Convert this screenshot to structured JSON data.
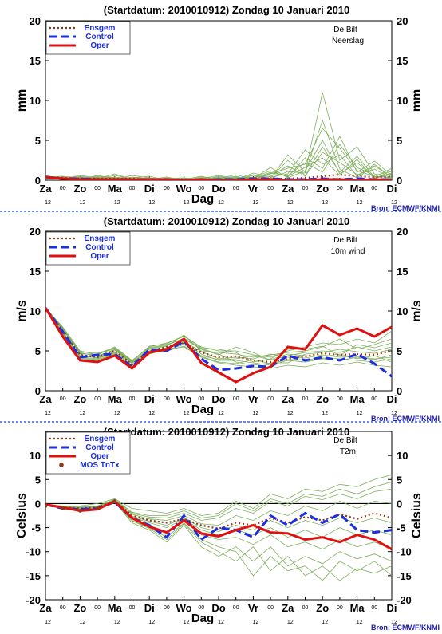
{
  "colors": {
    "ensemble": "#7fae5c",
    "ensgem": "#8b3a1a",
    "control": "#1c2fe0",
    "oper": "#e01010",
    "mos": "#8b3a1a",
    "divider": "#1a3de8",
    "credit": "#1a1ab0"
  },
  "credit": "Bron: ECMWF/KNMI",
  "station": "De Bilt",
  "x_tick_labels": [
    "Za",
    "Zo",
    "Ma",
    "Di",
    "Wo",
    "Do",
    "Vr",
    "Za",
    "Zo",
    "Ma",
    "Di"
  ],
  "x_sub_labels": [
    "12",
    "12",
    "12",
    "12",
    "12",
    "12",
    "12",
    "12",
    "12",
    "12",
    "12"
  ],
  "x_mid_label": "00",
  "chart_data": [
    {
      "type": "line",
      "title": "(Startdatum: 2010010912)   Zondag    10 Januari   2010",
      "variable": "Neerslag",
      "ylabel": "mm",
      "xlabel": "Dag",
      "ylim": [
        0,
        20
      ],
      "yticks": [
        0,
        5,
        10,
        15,
        20
      ],
      "x": [
        0,
        0.5,
        1,
        1.5,
        2,
        2.5,
        3,
        3.5,
        4,
        4.5,
        5,
        5.5,
        6,
        6.5,
        7,
        7.5,
        8,
        8.5,
        9,
        9.5,
        10
      ],
      "legend": [
        "Ensgem",
        "Control",
        "Oper"
      ],
      "series": [
        {
          "name": "Ensgem",
          "values": [
            0.4,
            0.3,
            0.2,
            0.2,
            0.2,
            0.2,
            0.1,
            0.1,
            0.1,
            0.1,
            0.1,
            0.1,
            0.1,
            0.2,
            0.2,
            0.3,
            0.5,
            0.7,
            0.5,
            0.4,
            0.4
          ]
        },
        {
          "name": "Control",
          "values": [
            0.4,
            0.2,
            0.2,
            0.1,
            0.1,
            0.1,
            0.1,
            0.0,
            0.0,
            0.0,
            0.1,
            0.1,
            0.2,
            0.2,
            0.1,
            0.1,
            0.2,
            0.1,
            0.2,
            0.1,
            0.1
          ]
        },
        {
          "name": "Oper",
          "values": [
            0.4,
            0.2,
            0.1,
            0.1,
            0.1,
            0.1,
            0.1,
            0.1,
            0.0,
            0.1,
            0.0,
            0.0,
            0.1,
            0.1,
            0.0,
            0.0,
            0.1,
            0.1,
            0.0,
            0.1,
            0.0
          ]
        }
      ],
      "members": [
        [
          0.4,
          0.3,
          0.1,
          0.6,
          0.2,
          0.1,
          0.3,
          0.1,
          0.0,
          0.2,
          0.1,
          0.4,
          0.1,
          0.8,
          1.5,
          2.0,
          6.5,
          4.0,
          1.2,
          0.5,
          0.3
        ],
        [
          0.5,
          0.1,
          0.4,
          0.1,
          0.3,
          0.0,
          0.1,
          0.2,
          0.1,
          0.0,
          0.3,
          0.0,
          0.6,
          0.2,
          3.2,
          1.0,
          11.0,
          2.5,
          4.2,
          0.8,
          0.2
        ],
        [
          0.3,
          0.4,
          0.2,
          0.3,
          0.1,
          0.4,
          0.2,
          0.0,
          0.2,
          0.1,
          0.0,
          0.2,
          0.3,
          1.2,
          0.4,
          2.8,
          1.5,
          5.5,
          1.0,
          2.4,
          0.6
        ],
        [
          0.4,
          0.2,
          0.5,
          0.2,
          0.8,
          0.1,
          0.0,
          0.3,
          0.0,
          0.4,
          0.2,
          0.7,
          0.1,
          0.3,
          2.5,
          0.6,
          4.2,
          1.0,
          3.0,
          0.4,
          1.5
        ],
        [
          0.6,
          0.1,
          0.2,
          0.4,
          0.1,
          0.6,
          0.3,
          0.1,
          0.3,
          0.0,
          0.5,
          0.1,
          0.9,
          0.4,
          0.8,
          3.8,
          2.0,
          3.2,
          0.5,
          2.0,
          0.3
        ],
        [
          0.3,
          0.3,
          0.0,
          0.2,
          0.4,
          0.2,
          0.1,
          0.4,
          0.0,
          0.3,
          0.1,
          0.3,
          0.2,
          1.6,
          0.3,
          1.2,
          5.0,
          0.8,
          2.2,
          0.3,
          0.9
        ],
        [
          0.4,
          0.5,
          0.3,
          0.1,
          0.2,
          0.3,
          0.5,
          0.0,
          0.1,
          0.2,
          0.6,
          0.2,
          0.4,
          0.5,
          1.8,
          0.5,
          3.5,
          2.2,
          0.7,
          1.4,
          0.2
        ],
        [
          0.5,
          0.2,
          0.6,
          0.3,
          0.1,
          0.0,
          0.2,
          0.2,
          0.3,
          0.1,
          0.2,
          0.5,
          0.0,
          0.9,
          0.6,
          2.2,
          1.0,
          4.5,
          1.6,
          0.6,
          1.1
        ],
        [
          0.2,
          0.4,
          0.1,
          0.5,
          0.3,
          0.1,
          0.0,
          0.1,
          0.2,
          0.0,
          0.4,
          0.1,
          0.7,
          0.2,
          1.1,
          0.9,
          7.5,
          1.4,
          0.3,
          1.8,
          0.4
        ],
        [
          0.4,
          0.1,
          0.3,
          0.2,
          0.6,
          0.2,
          0.3,
          0.0,
          0.1,
          0.5,
          0.0,
          0.3,
          0.2,
          1.0,
          0.5,
          1.6,
          2.8,
          0.6,
          2.6,
          0.2,
          0.8
        ]
      ]
    },
    {
      "type": "line",
      "title": "(Startdatum: 2010010912)   Zondag    10 Januari   2010",
      "variable": "10m wind",
      "ylabel": "m/s",
      "xlabel": "Dag",
      "ylim": [
        0,
        20
      ],
      "yticks": [
        0,
        5,
        10,
        15,
        20
      ],
      "x": [
        0,
        0.5,
        1,
        1.5,
        2,
        2.5,
        3,
        3.5,
        4,
        4.5,
        5,
        5.5,
        6,
        6.5,
        7,
        7.5,
        8,
        8.5,
        9,
        9.5,
        10
      ],
      "legend": [
        "Ensgem",
        "Control",
        "Oper"
      ],
      "series": [
        {
          "name": "Ensgem",
          "values": [
            10.4,
            7.5,
            4.5,
            4.2,
            5.0,
            3.3,
            5.0,
            5.5,
            6.0,
            4.8,
            4.2,
            4.3,
            3.8,
            3.6,
            4.0,
            4.3,
            4.7,
            4.5,
            4.6,
            4.5,
            5.0
          ]
        },
        {
          "name": "Control",
          "values": [
            10.4,
            7.4,
            4.2,
            4.5,
            4.6,
            3.0,
            5.2,
            5.0,
            6.2,
            4.0,
            2.6,
            2.8,
            3.1,
            3.0,
            4.4,
            3.8,
            4.2,
            3.8,
            4.6,
            3.4,
            1.8
          ]
        },
        {
          "name": "Oper",
          "values": [
            10.4,
            6.8,
            3.8,
            3.6,
            4.4,
            2.8,
            4.8,
            5.2,
            6.5,
            3.5,
            2.3,
            1.1,
            2.2,
            3.0,
            5.5,
            5.2,
            8.2,
            7.0,
            7.8,
            6.8,
            8.0
          ]
        }
      ],
      "members": [
        [
          10.4,
          8.0,
          5.0,
          4.5,
          5.5,
          3.8,
          5.5,
          6.0,
          6.8,
          5.5,
          5.0,
          5.0,
          4.5,
          4.2,
          5.0,
          5.5,
          6.0,
          5.8,
          6.5,
          6.0,
          7.5
        ],
        [
          10.4,
          7.0,
          4.0,
          3.8,
          4.5,
          2.8,
          4.6,
          5.2,
          5.5,
          4.2,
          3.5,
          3.2,
          3.0,
          2.8,
          3.2,
          3.0,
          3.5,
          3.2,
          3.6,
          3.2,
          3.0
        ],
        [
          10.4,
          7.6,
          4.8,
          4.3,
          5.2,
          3.5,
          5.2,
          5.6,
          7.0,
          5.0,
          4.8,
          4.6,
          4.2,
          4.5,
          4.8,
          5.0,
          5.5,
          6.5,
          5.2,
          5.8,
          6.5
        ],
        [
          10.4,
          7.2,
          4.2,
          4.0,
          4.8,
          3.0,
          4.9,
          5.3,
          6.0,
          4.6,
          3.8,
          3.8,
          3.5,
          3.2,
          3.8,
          3.6,
          4.0,
          3.8,
          4.2,
          3.9,
          4.5
        ],
        [
          10.4,
          7.9,
          4.6,
          4.6,
          5.3,
          3.6,
          5.4,
          5.8,
          6.5,
          5.2,
          4.5,
          5.5,
          4.8,
          3.8,
          4.4,
          4.8,
          5.0,
          4.8,
          5.5,
          5.0,
          5.5
        ],
        [
          10.4,
          7.4,
          4.4,
          4.1,
          4.9,
          3.2,
          5.0,
          5.4,
          6.2,
          4.9,
          4.0,
          4.2,
          4.0,
          4.6,
          4.2,
          4.1,
          4.5,
          4.2,
          4.3,
          4.0,
          4.2
        ],
        [
          10.4,
          7.7,
          4.7,
          4.4,
          5.1,
          3.4,
          5.3,
          5.7,
          6.6,
          5.3,
          4.6,
          3.6,
          3.2,
          3.5,
          3.5,
          4.6,
          4.8,
          5.2,
          4.9,
          4.7,
          5.2
        ],
        [
          10.4,
          7.3,
          4.3,
          4.2,
          4.7,
          3.1,
          4.8,
          5.1,
          5.8,
          4.4,
          3.9,
          4.0,
          4.4,
          3.9,
          4.6,
          4.4,
          4.3,
          4.6,
          4.0,
          4.4,
          3.6
        ],
        [
          10.4,
          7.8,
          4.9,
          4.7,
          5.4,
          3.7,
          5.6,
          5.9,
          6.9,
          5.4,
          5.2,
          4.8,
          3.6,
          4.0,
          5.2,
          5.2,
          5.6,
          4.4,
          5.8,
          5.4,
          6.0
        ],
        [
          10.4,
          7.1,
          4.1,
          3.9,
          4.6,
          2.9,
          4.7,
          5.0,
          5.6,
          4.3,
          3.6,
          3.4,
          3.9,
          3.4,
          3.9,
          3.9,
          4.1,
          4.0,
          3.8,
          3.6,
          4.0
        ]
      ]
    },
    {
      "type": "line",
      "title": "(Startdatum: 2010010912)   Zondag    10 Januari   2010",
      "variable": "T2m",
      "ylabel": "Celsius",
      "xlabel": "Dag",
      "ylim": [
        -20,
        15
      ],
      "yticks": [
        -20,
        -15,
        -10,
        -5,
        0,
        5,
        10
      ],
      "x": [
        0,
        0.5,
        1,
        1.5,
        2,
        2.5,
        3,
        3.5,
        4,
        4.5,
        5,
        5.5,
        6,
        6.5,
        7,
        7.5,
        8,
        8.5,
        9,
        9.5,
        10
      ],
      "legend": [
        "Ensgem",
        "Control",
        "Oper",
        "MOS TnTx"
      ],
      "series": [
        {
          "name": "Ensgem",
          "values": [
            -0.2,
            -0.8,
            -1.0,
            -0.8,
            0.5,
            -2.5,
            -3.5,
            -4.0,
            -3.2,
            -4.5,
            -5.2,
            -4.0,
            -4.5,
            -3.0,
            -4.0,
            -2.8,
            -3.5,
            -2.2,
            -3.2,
            -2.0,
            -3.0
          ]
        },
        {
          "name": "Control",
          "values": [
            -0.2,
            -1.0,
            -1.2,
            -1.0,
            0.3,
            -3.0,
            -4.5,
            -7.0,
            -2.5,
            -7.5,
            -5.0,
            -5.5,
            -7.0,
            -2.5,
            -4.5,
            -2.0,
            -4.0,
            -2.2,
            -5.5,
            -6.0,
            -5.5
          ]
        },
        {
          "name": "Oper",
          "values": [
            -0.2,
            -0.8,
            -1.5,
            -1.2,
            0.5,
            -3.0,
            -4.8,
            -6.0,
            -3.5,
            -6.2,
            -6.8,
            -5.5,
            -4.5,
            -6.0,
            -6.2,
            -7.5,
            -7.0,
            -8.0,
            -6.5,
            -7.5,
            -9.5
          ]
        }
      ],
      "mos": [
        -0.5,
        -1.0,
        -1.5,
        -1.0,
        0.5
      ],
      "members": [
        [
          -0.2,
          -0.5,
          -0.5,
          0.0,
          1.0,
          -1.0,
          -1.5,
          -2.0,
          -1.0,
          -2.5,
          -2.0,
          0.5,
          -1.0,
          2.0,
          1.0,
          3.0,
          2.5,
          4.0,
          3.5,
          5.0,
          6.0
        ],
        [
          -0.2,
          -1.2,
          -1.5,
          -1.2,
          0.3,
          -4.0,
          -5.5,
          -8.0,
          -4.5,
          -9.0,
          -11.0,
          -9.0,
          -12.0,
          -9.0,
          -13.0,
          -11.0,
          -12.5,
          -10.0,
          -11.5,
          -10.5,
          -12.0
        ],
        [
          -0.2,
          -0.6,
          -0.8,
          -0.6,
          0.6,
          -2.0,
          -2.8,
          -3.0,
          -2.0,
          -3.5,
          -3.0,
          -1.0,
          -2.0,
          0.5,
          -0.5,
          1.5,
          0.8,
          2.0,
          1.0,
          2.5,
          3.0
        ],
        [
          -0.2,
          -1.0,
          -1.2,
          -1.0,
          0.2,
          -3.2,
          -4.5,
          -6.0,
          -3.5,
          -6.5,
          -7.5,
          -7.0,
          -8.5,
          -6.5,
          -9.0,
          -8.0,
          -9.5,
          -7.5,
          -9.0,
          -8.0,
          -9.5
        ],
        [
          -0.2,
          -0.7,
          -0.9,
          -0.7,
          0.8,
          -2.2,
          -3.2,
          -3.5,
          -2.5,
          -4.2,
          -4.5,
          -2.5,
          -3.5,
          -1.5,
          -2.5,
          -0.5,
          -1.5,
          0.5,
          -1.0,
          0.5,
          0.0
        ],
        [
          -0.2,
          -1.1,
          -1.3,
          -1.1,
          0.4,
          -3.5,
          -5.0,
          -7.0,
          -4.0,
          -7.5,
          -9.0,
          -10.0,
          -15.0,
          -11.0,
          -14.0,
          -13.0,
          -16.0,
          -12.0,
          -14.0,
          -12.0,
          -15.0
        ],
        [
          -0.2,
          -0.8,
          -1.0,
          -0.9,
          0.6,
          -2.6,
          -3.7,
          -4.5,
          -3.0,
          -5.0,
          -5.8,
          -4.5,
          -5.5,
          -3.5,
          -5.0,
          -3.5,
          -4.5,
          -3.0,
          -4.0,
          -3.0,
          -4.0
        ],
        [
          -0.2,
          -0.9,
          -1.1,
          -0.8,
          0.5,
          -2.8,
          -4.0,
          -5.0,
          -3.2,
          -5.5,
          -6.5,
          -5.5,
          -6.5,
          -5.0,
          -7.0,
          -5.5,
          -7.0,
          -5.0,
          -6.5,
          -5.5,
          -6.5
        ],
        [
          -0.2,
          -0.6,
          -0.7,
          -0.5,
          0.9,
          -1.8,
          -2.5,
          -2.5,
          -1.5,
          -3.0,
          -2.5,
          0.0,
          -1.5,
          1.0,
          0.0,
          2.0,
          1.5,
          3.0,
          2.0,
          3.5,
          4.5
        ],
        [
          -0.2,
          -1.0,
          -1.4,
          -1.2,
          0.2,
          -3.6,
          -5.2,
          -7.5,
          -4.2,
          -8.0,
          -10.0,
          -12.0,
          -9.0,
          -14.0,
          -11.0,
          -15.0,
          -13.0,
          -16.0,
          -13.5,
          -14.5,
          -13.0
        ]
      ]
    }
  ]
}
